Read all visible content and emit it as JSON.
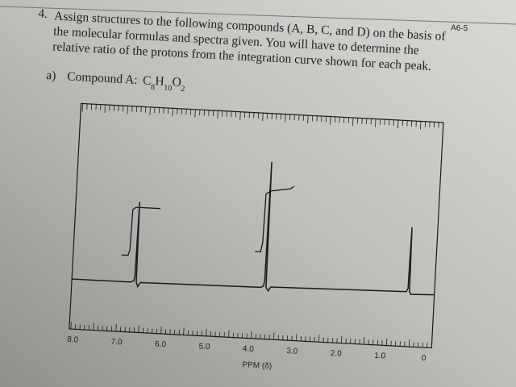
{
  "page_number": "A6-5",
  "question": {
    "number": "4.",
    "lines": [
      "Assign structures to the following compounds (A, B, C, and D) on the basis of",
      "the molecular formulas and spectra given. You will have to determine the",
      "relative ratio of the protons from the integration curve shown for each peak."
    ]
  },
  "part": {
    "label": "a)",
    "compound": "Compound A:",
    "formula_parts": [
      "C",
      "8",
      "H",
      "10",
      "O",
      "2"
    ]
  },
  "spectrum": {
    "axis_ticks": [
      "8.0",
      "7.0",
      "6.0",
      "5.0",
      "4.0",
      "3.0",
      "2.0",
      "1.0",
      "0"
    ],
    "axis_label": "PPM (δ)"
  }
}
